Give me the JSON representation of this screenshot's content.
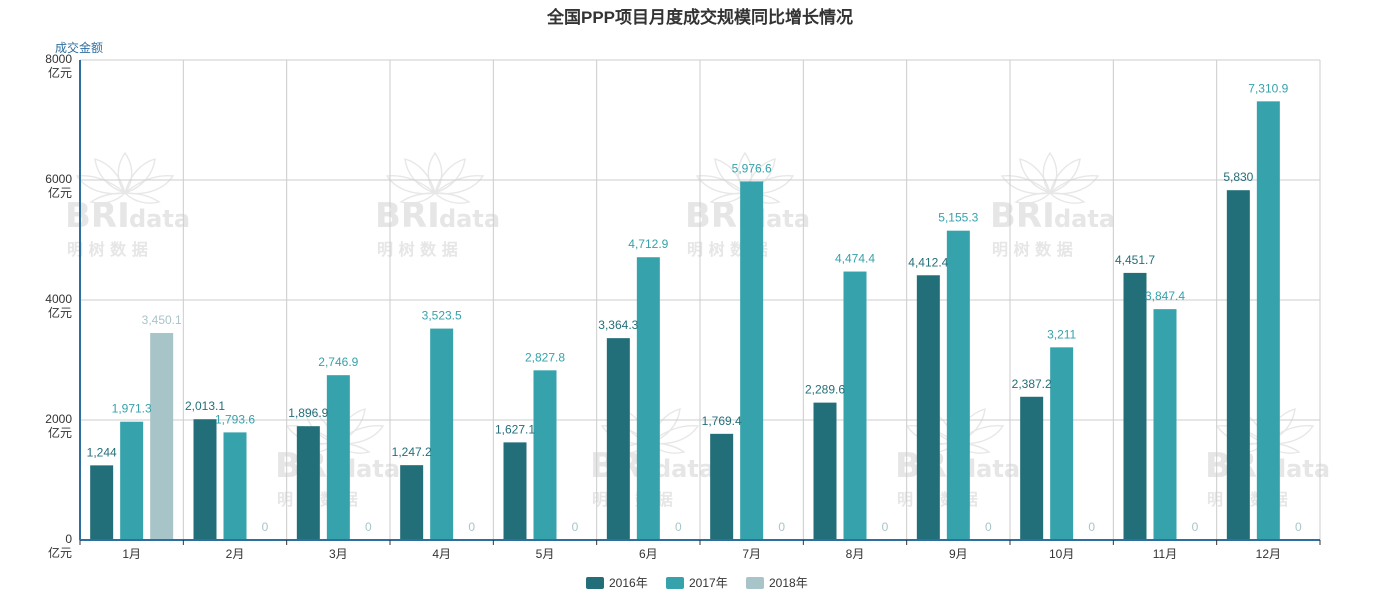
{
  "chart_data": {
    "type": "bar",
    "title": "全国PPP项目月度成交规模同比增长情况",
    "ylabel": "成交金额",
    "y_unit": "亿元",
    "ylim": [
      0,
      8000
    ],
    "yticks": [
      0,
      2000,
      4000,
      6000,
      8000
    ],
    "grid": true,
    "legend_position": "bottom-center",
    "categories": [
      "1月",
      "2月",
      "3月",
      "4月",
      "5月",
      "6月",
      "7月",
      "8月",
      "9月",
      "10月",
      "11月",
      "12月"
    ],
    "series": [
      {
        "name": "2016年",
        "color": "#236f79",
        "values": [
          1244,
          2013.1,
          1896.9,
          1247.2,
          1627.1,
          3364.3,
          1769.4,
          2289.6,
          4412.4,
          2387.2,
          4451.7,
          5830
        ],
        "labels": [
          "1,244",
          "2,013.1",
          "1,896.9",
          "1,247.2",
          "1,627.1",
          "3,364.3",
          "1,769.4",
          "2,289.6",
          "4,412.4",
          "2,387.2",
          "4,451.7",
          "5,830"
        ]
      },
      {
        "name": "2017年",
        "color": "#36a2ab",
        "values": [
          1971.3,
          1793.6,
          2746.9,
          3523.5,
          2827.8,
          4712.9,
          5976.6,
          4474.4,
          5155.3,
          3211,
          3847.4,
          7310.9
        ],
        "labels": [
          "1,971.3",
          "1,793.6",
          "2,746.9",
          "3,523.5",
          "2,827.8",
          "4,712.9",
          "5,976.6",
          "4,474.4",
          "5,155.3",
          "3,211",
          "3,847.4",
          "7,310.9"
        ]
      },
      {
        "name": "2018年",
        "color": "#a7c5c9",
        "values": [
          3450.1,
          0,
          0,
          0,
          0,
          0,
          0,
          0,
          0,
          0,
          0,
          0
        ],
        "labels": [
          "3,450.1",
          "0",
          "0",
          "0",
          "0",
          "0",
          "0",
          "0",
          "0",
          "0",
          "0",
          "0"
        ]
      }
    ]
  },
  "watermark": {
    "brand": "BRI",
    "suffix": "data",
    "cn": "明 树 数 据"
  }
}
